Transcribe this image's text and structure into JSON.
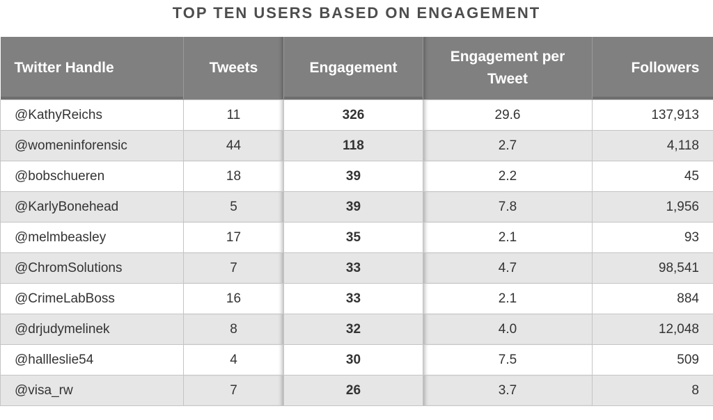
{
  "title": "TOP TEN USERS BASED ON ENGAGEMENT",
  "chart_data": {
    "type": "table",
    "title": "TOP TEN USERS BASED ON ENGAGEMENT",
    "columns": [
      "Twitter Handle",
      "Tweets",
      "Engagement",
      "Engagement per Tweet",
      "Followers"
    ],
    "rows": [
      {
        "handle": "@KathyReichs",
        "tweets": "11",
        "engagement": "326",
        "per_tweet": "29.6",
        "followers": "137,913"
      },
      {
        "handle": "@womeninforensic",
        "tweets": "44",
        "engagement": "118",
        "per_tweet": "2.7",
        "followers": "4,118"
      },
      {
        "handle": "@bobschueren",
        "tweets": "18",
        "engagement": "39",
        "per_tweet": "2.2",
        "followers": "45"
      },
      {
        "handle": "@KarlyBonehead",
        "tweets": "5",
        "engagement": "39",
        "per_tweet": "7.8",
        "followers": "1,956"
      },
      {
        "handle": "@melmbeasley",
        "tweets": "17",
        "engagement": "35",
        "per_tweet": "2.1",
        "followers": "93"
      },
      {
        "handle": "@ChromSolutions",
        "tweets": "7",
        "engagement": "33",
        "per_tweet": "4.7",
        "followers": "98,541"
      },
      {
        "handle": "@CrimeLabBoss",
        "tweets": "16",
        "engagement": "33",
        "per_tweet": "2.1",
        "followers": "884"
      },
      {
        "handle": "@drjudymelinek",
        "tweets": "8",
        "engagement": "32",
        "per_tweet": "4.0",
        "followers": "12,048"
      },
      {
        "handle": "@hallleslie54",
        "tweets": "4",
        "engagement": "30",
        "per_tweet": "7.5",
        "followers": "509"
      },
      {
        "handle": "@visa_rw",
        "tweets": "7",
        "engagement": "26",
        "per_tweet": "3.7",
        "followers": "8"
      }
    ]
  },
  "colors": {
    "header_bg": "#808080",
    "header_text": "#ffffff",
    "stripe": "#e6e6e6",
    "title": "#4d4d4d"
  }
}
